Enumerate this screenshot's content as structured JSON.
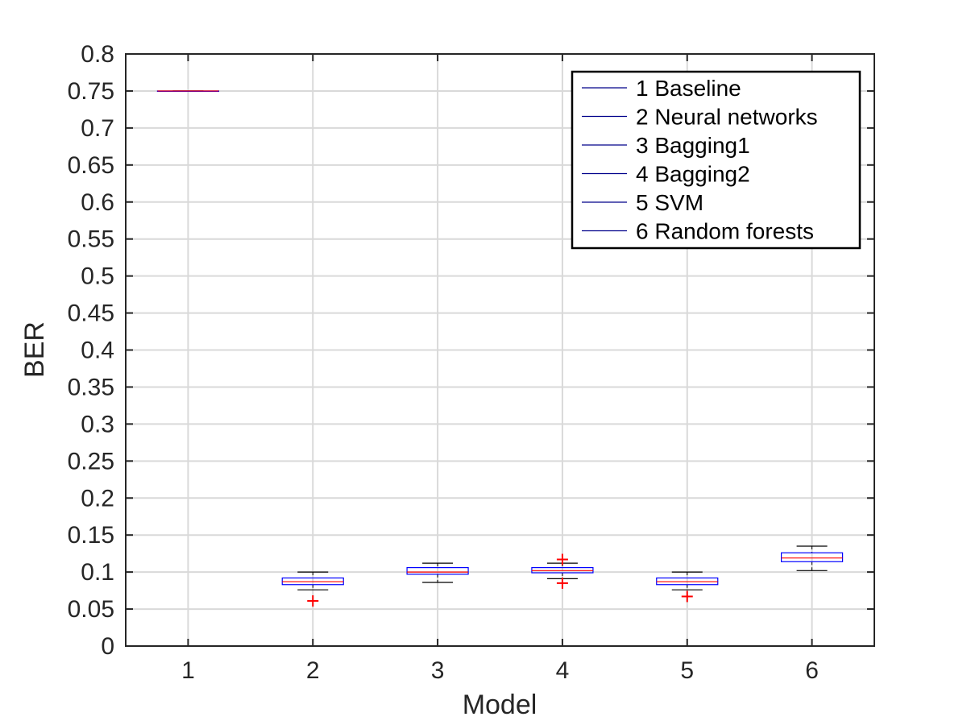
{
  "chart_data": {
    "type": "box",
    "title": "",
    "xlabel": "Model",
    "ylabel": "BER",
    "categories": [
      "1",
      "2",
      "3",
      "4",
      "5",
      "6"
    ],
    "ylim": [
      0,
      0.8
    ],
    "yticks": [
      "0",
      "0.05",
      "0.1",
      "0.15",
      "0.2",
      "0.25",
      "0.3",
      "0.35",
      "0.4",
      "0.45",
      "0.5",
      "0.55",
      "0.6",
      "0.65",
      "0.7",
      "0.75",
      "0.8"
    ],
    "grid": true,
    "legend_position": "top-right",
    "legend": [
      "1 Baseline",
      "2 Neural networks",
      "3 Bagging1",
      "4 Bagging2",
      "5 SVM",
      "6 Random forests"
    ],
    "boxes": [
      {
        "category": "1",
        "whisker_low": 0.75,
        "q1": 0.75,
        "median": 0.75,
        "q3": 0.75,
        "whisker_high": 0.75,
        "outliers": []
      },
      {
        "category": "2",
        "whisker_low": 0.076,
        "q1": 0.083,
        "median": 0.087,
        "q3": 0.092,
        "whisker_high": 0.1,
        "outliers": [
          0.061
        ]
      },
      {
        "category": "3",
        "whisker_low": 0.086,
        "q1": 0.097,
        "median": 0.1,
        "q3": 0.106,
        "whisker_high": 0.112,
        "outliers": []
      },
      {
        "category": "4",
        "whisker_low": 0.091,
        "q1": 0.099,
        "median": 0.102,
        "q3": 0.106,
        "whisker_high": 0.112,
        "outliers": [
          0.085,
          0.117
        ]
      },
      {
        "category": "5",
        "whisker_low": 0.076,
        "q1": 0.083,
        "median": 0.087,
        "q3": 0.092,
        "whisker_high": 0.1,
        "outliers": [
          0.067
        ]
      },
      {
        "category": "6",
        "whisker_low": 0.102,
        "q1": 0.114,
        "median": 0.119,
        "q3": 0.126,
        "whisker_high": 0.135,
        "outliers": []
      }
    ],
    "colors": {
      "box": "#0000ff",
      "median": "#ff0000",
      "whisker": "#000000",
      "outlier": "#ff0000",
      "grid": "#d9d9d9",
      "axis": "#262626",
      "legend_line": "#00008b"
    }
  }
}
